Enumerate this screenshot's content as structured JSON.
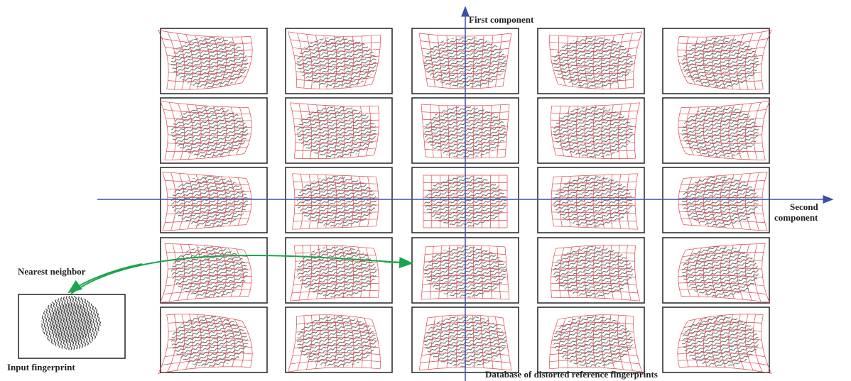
{
  "axes": {
    "vertical": "First component",
    "horizontal": [
      "Second",
      "component"
    ]
  },
  "nearest_neighbor": "Nearest neighbor",
  "input": {
    "label": "Input fingerprint"
  },
  "database": {
    "label": "Database of distorted reference fingerprints"
  }
}
